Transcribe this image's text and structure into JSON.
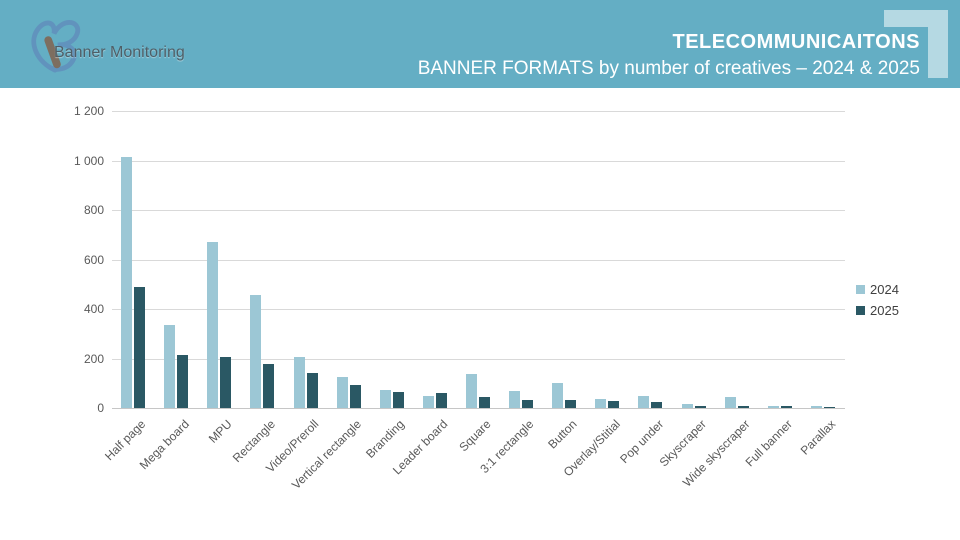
{
  "header": {
    "logo_text": "Banner Monitoring",
    "title": "TELECOMMUNICAITONS",
    "subtitle": "BANNER FORMATS by number of creatives – 2024 & 2025"
  },
  "colors": {
    "header_bg": "#64aec4",
    "corner_decoration": "#b5d9e3",
    "series_2024": "#9cc7d5",
    "series_2025": "#2a5864",
    "gridline": "#d9d9d9",
    "axis_line": "#c6c6c6",
    "axis_text": "#595959",
    "legend_text": "#404040"
  },
  "chart_data": {
    "type": "bar",
    "title": "BANNER FORMATS by number of creatives – 2024 & 2025",
    "categories": [
      "Half page",
      "Mega board",
      "MPU",
      "Rectangle",
      "Video/Preroll",
      "Vertical rectangle",
      "Branding",
      "Leader board",
      "Square",
      "3:1 rectangle",
      "Button",
      "Overlay/Stitial",
      "Pop under",
      "Skyscraper",
      "Wide skyscraper",
      "Full banner",
      "Parallax"
    ],
    "series": [
      {
        "name": "2024",
        "color": "#9cc7d5",
        "values": [
          1015,
          335,
          670,
          455,
          205,
          125,
          72,
          50,
          138,
          68,
          102,
          35,
          50,
          18,
          46,
          9,
          8
        ]
      },
      {
        "name": "2025",
        "color": "#2a5864",
        "values": [
          490,
          215,
          205,
          178,
          140,
          93,
          65,
          60,
          44,
          32,
          33,
          28,
          26,
          8,
          8,
          8,
          2
        ]
      }
    ],
    "xlabel": "",
    "ylabel": "",
    "ylim": [
      0,
      1200
    ],
    "ytick_step": 200,
    "ytick_labels": [
      "0",
      "200",
      "400",
      "600",
      "800",
      "1 000",
      "1 200"
    ],
    "grid": "horizontal",
    "legend_position": "right"
  }
}
